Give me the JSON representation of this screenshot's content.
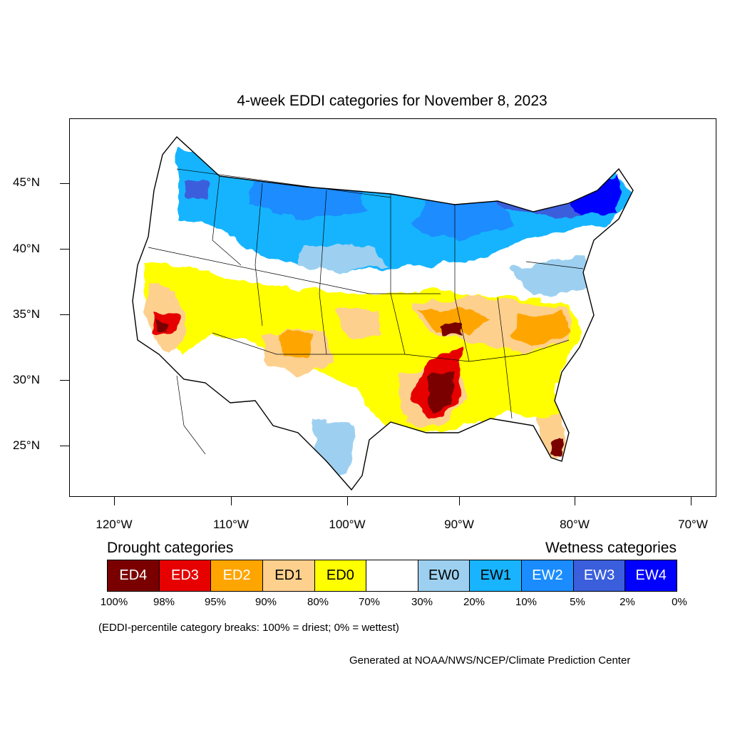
{
  "title": "4-week EDDI categories for November 8, 2023",
  "colors": {
    "ED4": "#7a0000",
    "ED3": "#e60000",
    "ED2": "#ffa500",
    "ED1": "#fdd08e",
    "ED0": "#ffff00",
    "neutral": "#ffffff",
    "EW0": "#9dd0f0",
    "EW1": "#18b4ff",
    "EW2": "#1a8cff",
    "EW3": "#3b5edc",
    "EW4": "#0000ff"
  },
  "axes": {
    "lat_labels": [
      "45°N",
      "40°N",
      "35°N",
      "30°N",
      "25°N"
    ],
    "lon_labels": [
      "120°W",
      "110°W",
      "100°W",
      "90°W",
      "80°W",
      "70°W"
    ]
  },
  "legend": {
    "drought_heading": "Drought categories",
    "wetness_heading": "Wetness categories",
    "boxes": [
      {
        "label": "ED4",
        "color": "#7a0000",
        "text_color": "#ffffff"
      },
      {
        "label": "ED3",
        "color": "#e60000",
        "text_color": "#ffffff"
      },
      {
        "label": "ED2",
        "color": "#ffa500",
        "text_color": "#ffffff"
      },
      {
        "label": "ED1",
        "color": "#fdd08e",
        "text_color": "#000000"
      },
      {
        "label": "ED0",
        "color": "#ffff00",
        "text_color": "#000000"
      },
      {
        "label": "",
        "color": "#ffffff",
        "text_color": "#000000"
      },
      {
        "label": "EW0",
        "color": "#9dd0f0",
        "text_color": "#000000"
      },
      {
        "label": "EW1",
        "color": "#18b4ff",
        "text_color": "#000000"
      },
      {
        "label": "EW2",
        "color": "#1a8cff",
        "text_color": "#ffffff"
      },
      {
        "label": "EW3",
        "color": "#3b5edc",
        "text_color": "#ffffff"
      },
      {
        "label": "EW4",
        "color": "#0000ff",
        "text_color": "#ffffff"
      }
    ],
    "breaks": [
      "100%",
      "98%",
      "95%",
      "90%",
      "80%",
      "70%",
      "30%",
      "20%",
      "10%",
      "5%",
      "2%",
      "0%"
    ]
  },
  "note": "(EDDI-percentile category breaks: 100% = driest; 0% = wettest)",
  "credit": "Generated at NOAA/NWS/NCEP/Climate Prediction Center"
}
